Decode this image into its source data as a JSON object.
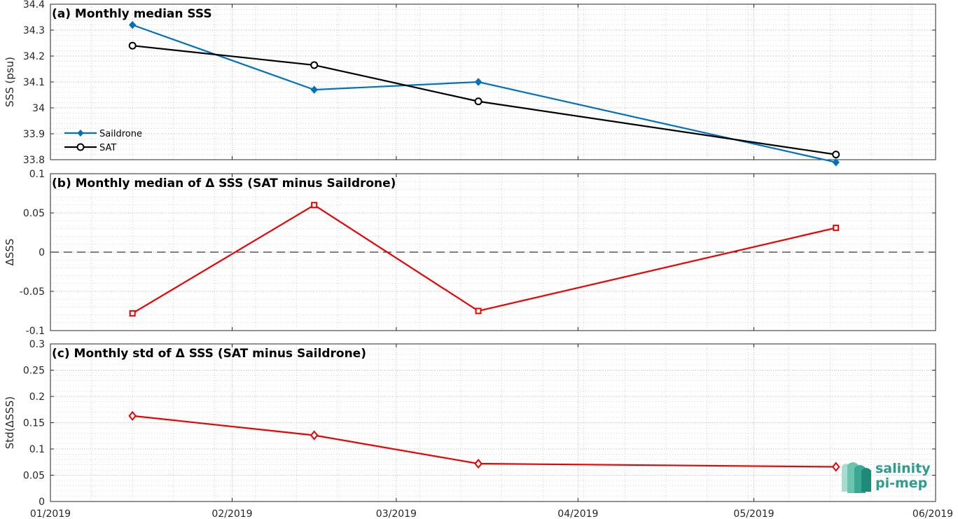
{
  "chart_data": [
    {
      "type": "line",
      "title": "(a) Monthly median SSS",
      "xlabel": "",
      "ylabel": "SSS (psu)",
      "x": [
        "2019-01-15",
        "2019-02-15",
        "2019-03-15",
        "2019-05-15"
      ],
      "ylim": [
        33.8,
        34.4
      ],
      "yticks": [
        33.8,
        33.9,
        34,
        34.1,
        34.2,
        34.3,
        34.4
      ],
      "ytick_labels": [
        "33.8",
        "33.9",
        "34",
        "34.1",
        "34.2",
        "34.3",
        "34.4"
      ],
      "grid": true,
      "legend": "bottom-left",
      "series": [
        {
          "name": "Saildrone",
          "color": "#0072bd",
          "marker": "diamond-filled",
          "values": [
            34.32,
            34.07,
            34.1,
            33.79
          ]
        },
        {
          "name": "SAT",
          "color": "#000000",
          "marker": "circle",
          "values": [
            34.24,
            34.165,
            34.025,
            33.82
          ]
        }
      ]
    },
    {
      "type": "line",
      "title": "(b) Monthly median of Δ SSS (SAT minus Saildrone)",
      "xlabel": "",
      "ylabel": "ΔSSS",
      "x": [
        "2019-01-15",
        "2019-02-15",
        "2019-03-15",
        "2019-05-15"
      ],
      "ylim": [
        -0.1,
        0.1
      ],
      "yticks": [
        -0.1,
        -0.05,
        0,
        0.05,
        0.1
      ],
      "ytick_labels": [
        "-0.1",
        "-0.05",
        "0",
        "0.05",
        "0.1"
      ],
      "reference_line": 0,
      "grid": true,
      "series": [
        {
          "color": "#ee0000",
          "marker": "square",
          "values": [
            -0.078,
            0.06,
            -0.075,
            0.031
          ]
        }
      ]
    },
    {
      "type": "line",
      "title": "(c) Monthly std of Δ SSS (SAT minus Saildrone)",
      "xlabel": "",
      "ylabel": "Std(ΔSSS)",
      "x": [
        "2019-01-15",
        "2019-02-15",
        "2019-03-15",
        "2019-05-15"
      ],
      "ylim": [
        0,
        0.3
      ],
      "yticks": [
        0,
        0.05,
        0.1,
        0.15,
        0.2,
        0.25,
        0.3
      ],
      "ytick_labels": [
        "0",
        "0.05",
        "0.1",
        "0.15",
        "0.2",
        "0.25",
        "0.3"
      ],
      "grid": true,
      "series": [
        {
          "color": "#ee0000",
          "marker": "diamond",
          "values": [
            0.163,
            0.126,
            0.072,
            0.066
          ]
        }
      ]
    }
  ],
  "x_axis": {
    "range": [
      "2019-01-01",
      "2019-06-01"
    ],
    "ticks": [
      "2019-01-01",
      "2019-02-01",
      "2019-03-01",
      "2019-04-01",
      "2019-05-01",
      "2019-06-01"
    ],
    "tick_labels": [
      "01/2019",
      "02/2019",
      "03/2019",
      "04/2019",
      "05/2019",
      "06/2019"
    ]
  },
  "logo": {
    "line1": "salinity",
    "line2": "pi-mep",
    "color": "#2a9d8f"
  }
}
